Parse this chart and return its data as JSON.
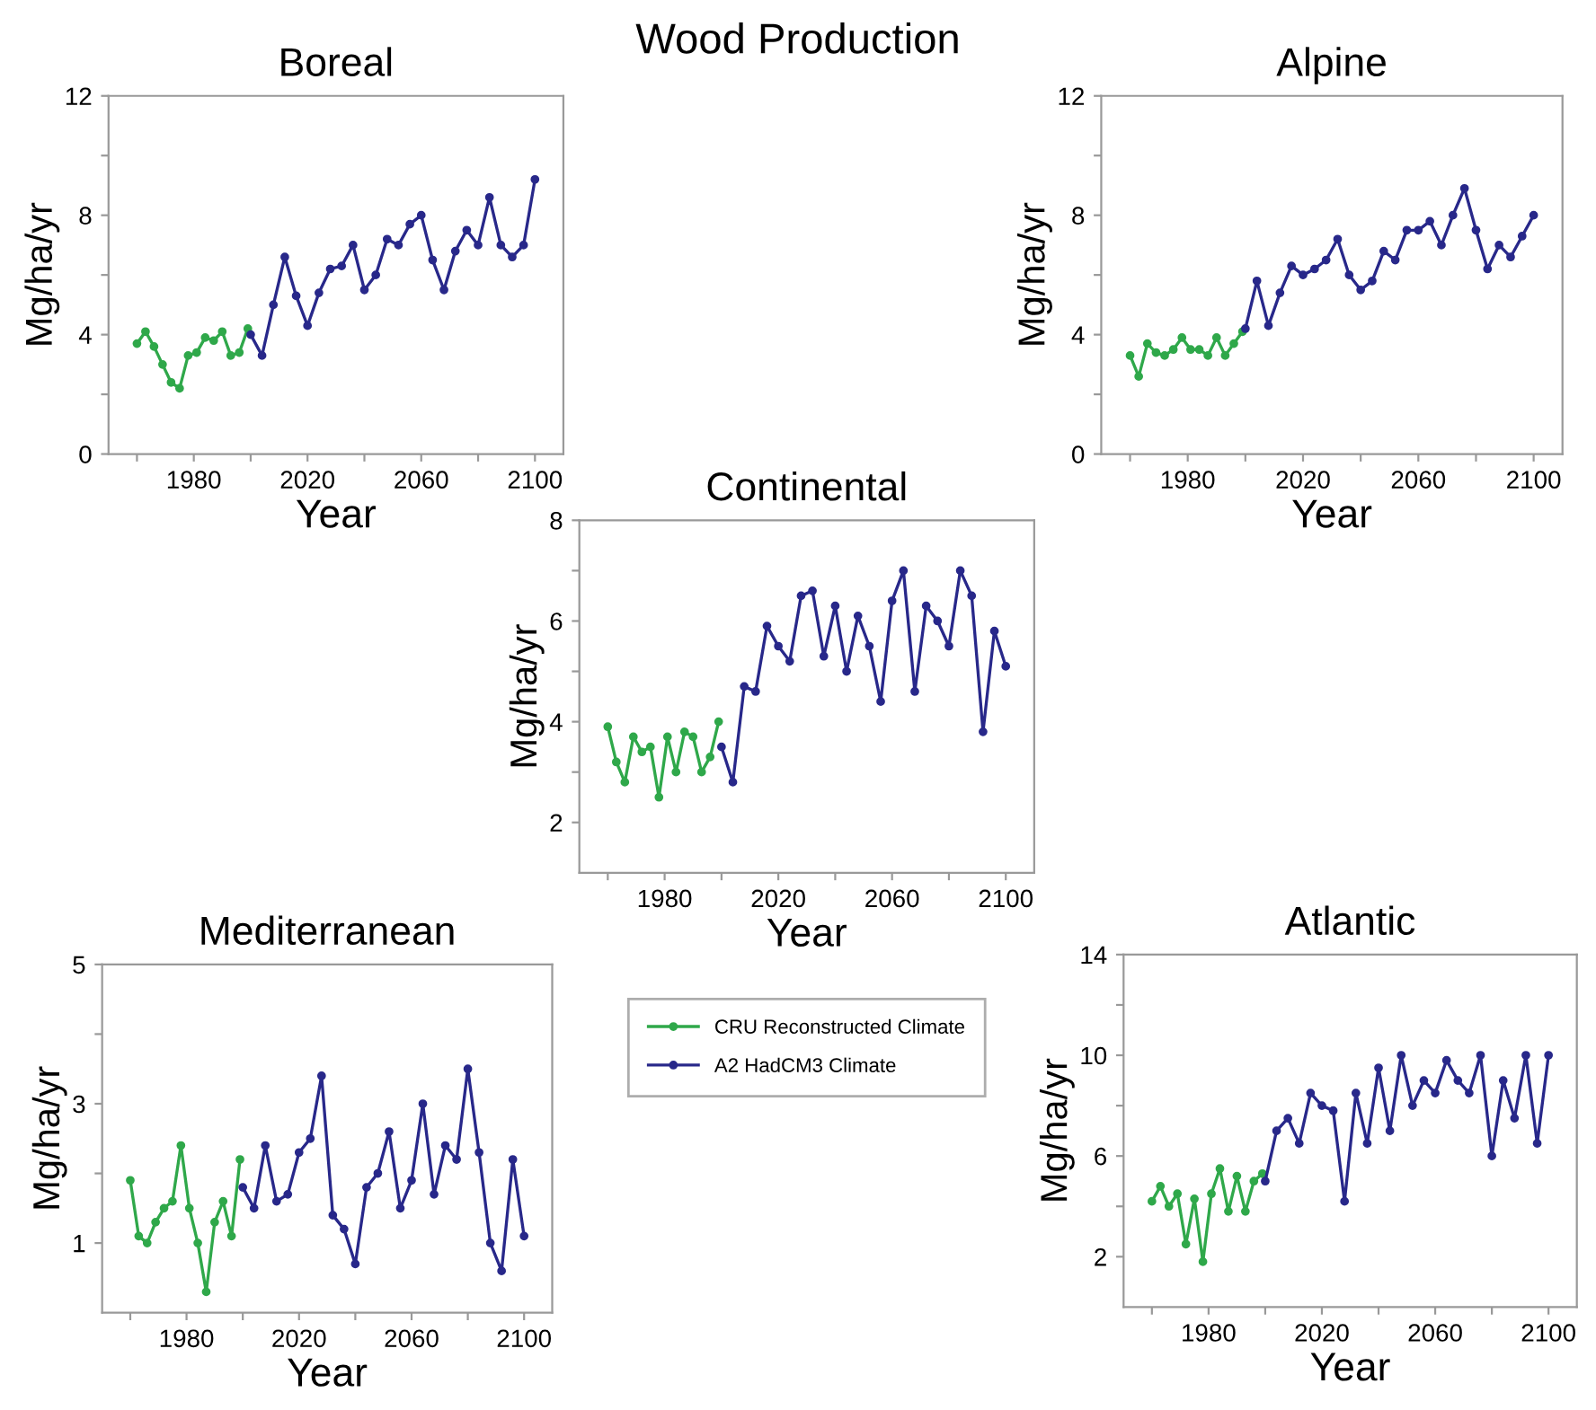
{
  "chart_data": [
    {
      "type": "line",
      "title": "Boreal",
      "xlabel": "Year",
      "ylabel": "Mg/ha/yr",
      "annotations": [
        "Wood Production"
      ],
      "marker": "circle",
      "line_style": "solid",
      "grid": false,
      "xlim": [
        1950,
        2110
      ],
      "xticks": [
        {
          "value": 1960,
          "label": null
        },
        1980,
        {
          "value": 2000,
          "label": null
        },
        2020,
        {
          "value": 2040,
          "label": null
        },
        2060,
        {
          "value": 2080,
          "label": null
        },
        2100
      ],
      "ylim": [
        0,
        12
      ],
      "yticks": [
        0,
        {
          "value": 2,
          "label": null
        },
        4,
        {
          "value": 6,
          "label": null
        },
        8,
        {
          "value": 10,
          "label": null
        },
        12
      ],
      "series": [
        {
          "color": "#2fa84a",
          "x": [
            1960,
            1963,
            1966,
            1969,
            1972,
            1975,
            1978,
            1981,
            1984,
            1987,
            1990,
            1993,
            1996,
            1999
          ],
          "values": [
            3.7,
            4.1,
            3.6,
            3.0,
            2.4,
            2.2,
            3.3,
            3.4,
            3.9,
            3.8,
            4.1,
            3.3,
            3.4,
            4.2
          ]
        },
        {
          "color": "#28288a",
          "x": [
            2000,
            2004,
            2008,
            2012,
            2016,
            2020,
            2024,
            2028,
            2032,
            2036,
            2040,
            2044,
            2048,
            2052,
            2056,
            2060,
            2064,
            2068,
            2072,
            2076,
            2080,
            2084,
            2088,
            2092,
            2096,
            2100
          ],
          "values": [
            4.0,
            3.3,
            5.0,
            6.6,
            5.3,
            4.3,
            5.4,
            6.2,
            6.3,
            7.0,
            5.5,
            6.0,
            7.2,
            7.0,
            7.7,
            8.0,
            6.5,
            5.5,
            6.8,
            7.5,
            7.0,
            8.6,
            7.0,
            6.6,
            7.0,
            9.2
          ]
        }
      ]
    },
    {
      "type": "line",
      "title": "Alpine",
      "xlabel": "Year",
      "ylabel": "Mg/ha/yr",
      "marker": "circle",
      "line_style": "solid",
      "grid": false,
      "xlim": [
        1950,
        2110
      ],
      "xticks": [
        {
          "value": 1960,
          "label": null
        },
        1980,
        {
          "value": 2000,
          "label": null
        },
        2020,
        {
          "value": 2040,
          "label": null
        },
        2060,
        {
          "value": 2080,
          "label": null
        },
        2100
      ],
      "ylim": [
        0,
        12
      ],
      "yticks": [
        0,
        {
          "value": 2,
          "label": null
        },
        4,
        {
          "value": 6,
          "label": null
        },
        8,
        {
          "value": 10,
          "label": null
        },
        12
      ],
      "series": [
        {
          "color": "#2fa84a",
          "x": [
            1960,
            1963,
            1966,
            1969,
            1972,
            1975,
            1978,
            1981,
            1984,
            1987,
            1990,
            1993,
            1996,
            1999
          ],
          "values": [
            3.3,
            2.6,
            3.7,
            3.4,
            3.3,
            3.5,
            3.9,
            3.5,
            3.5,
            3.3,
            3.9,
            3.3,
            3.7,
            4.1
          ]
        },
        {
          "color": "#28288a",
          "x": [
            2000,
            2004,
            2008,
            2012,
            2016,
            2020,
            2024,
            2028,
            2032,
            2036,
            2040,
            2044,
            2048,
            2052,
            2056,
            2060,
            2064,
            2068,
            2072,
            2076,
            2080,
            2084,
            2088,
            2092,
            2096,
            2100
          ],
          "values": [
            4.2,
            5.8,
            4.3,
            5.4,
            6.3,
            6.0,
            6.2,
            6.5,
            7.2,
            6.0,
            5.5,
            5.8,
            6.8,
            6.5,
            7.5,
            7.5,
            7.8,
            7.0,
            8.0,
            8.9,
            7.5,
            6.2,
            7.0,
            6.6,
            7.3,
            8.0
          ]
        }
      ]
    },
    {
      "type": "line",
      "title": "Continental",
      "xlabel": "Year",
      "ylabel": "Mg/ha/yr",
      "marker": "circle",
      "line_style": "solid",
      "grid": false,
      "legend": "bottom",
      "xlim": [
        1950,
        2110
      ],
      "xticks": [
        {
          "value": 1960,
          "label": null
        },
        1980,
        {
          "value": 2000,
          "label": null
        },
        2020,
        {
          "value": 2040,
          "label": null
        },
        2060,
        {
          "value": 2080,
          "label": null
        },
        2100
      ],
      "ylim": [
        1,
        8
      ],
      "yticks": [
        2,
        {
          "value": 3,
          "label": null
        },
        4,
        {
          "value": 5,
          "label": null
        },
        6,
        {
          "value": 7,
          "label": null
        },
        8
      ],
      "series": [
        {
          "name": "CRU Reconstructed Climate",
          "color": "#2fa84a",
          "x": [
            1960,
            1963,
            1966,
            1969,
            1972,
            1975,
            1978,
            1981,
            1984,
            1987,
            1990,
            1993,
            1996,
            1999
          ],
          "values": [
            3.9,
            3.2,
            2.8,
            3.7,
            3.4,
            3.5,
            2.5,
            3.7,
            3.0,
            3.8,
            3.7,
            3.0,
            3.3,
            4.0
          ]
        },
        {
          "name": "A2 HadCM3 Climate",
          "color": "#28288a",
          "x": [
            2000,
            2004,
            2008,
            2012,
            2016,
            2020,
            2024,
            2028,
            2032,
            2036,
            2040,
            2044,
            2048,
            2052,
            2056,
            2060,
            2064,
            2068,
            2072,
            2076,
            2080,
            2084,
            2088,
            2092,
            2096,
            2100
          ],
          "values": [
            3.5,
            2.8,
            4.7,
            4.6,
            5.9,
            5.5,
            5.2,
            6.5,
            6.6,
            5.3,
            6.3,
            5.0,
            6.1,
            5.5,
            4.4,
            6.4,
            7.0,
            4.6,
            6.3,
            6.0,
            5.5,
            7.0,
            6.5,
            3.8,
            5.8,
            5.1
          ]
        }
      ]
    },
    {
      "type": "line",
      "title": "Mediterranean",
      "xlabel": "Year",
      "ylabel": "Mg/ha/yr",
      "marker": "circle",
      "line_style": "solid",
      "grid": false,
      "xlim": [
        1950,
        2110
      ],
      "xticks": [
        {
          "value": 1960,
          "label": null
        },
        1980,
        {
          "value": 2000,
          "label": null
        },
        2020,
        {
          "value": 2040,
          "label": null
        },
        2060,
        {
          "value": 2080,
          "label": null
        },
        2100
      ],
      "ylim": [
        0,
        5
      ],
      "yticks": [
        1,
        {
          "value": 2,
          "label": null
        },
        3,
        {
          "value": 4,
          "label": null
        },
        5
      ],
      "series": [
        {
          "color": "#2fa84a",
          "x": [
            1960,
            1963,
            1966,
            1969,
            1972,
            1975,
            1978,
            1981,
            1984,
            1987,
            1990,
            1993,
            1996,
            1999
          ],
          "values": [
            1.9,
            1.1,
            1.0,
            1.3,
            1.5,
            1.6,
            2.4,
            1.5,
            1.0,
            0.3,
            1.3,
            1.6,
            1.1,
            2.2
          ]
        },
        {
          "color": "#28288a",
          "x": [
            2000,
            2004,
            2008,
            2012,
            2016,
            2020,
            2024,
            2028,
            2032,
            2036,
            2040,
            2044,
            2048,
            2052,
            2056,
            2060,
            2064,
            2068,
            2072,
            2076,
            2080,
            2084,
            2088,
            2092,
            2096,
            2100
          ],
          "values": [
            1.8,
            1.5,
            2.4,
            1.6,
            1.7,
            2.3,
            2.5,
            3.4,
            1.4,
            1.2,
            0.7,
            1.8,
            2.0,
            2.6,
            1.5,
            1.9,
            3.0,
            1.7,
            2.4,
            2.2,
            3.5,
            2.3,
            1.0,
            0.6,
            2.2,
            1.1
          ]
        }
      ]
    },
    {
      "type": "line",
      "title": "Atlantic",
      "xlabel": "Year",
      "ylabel": "Mg/ha/yr",
      "marker": "circle",
      "line_style": "solid",
      "grid": false,
      "xlim": [
        1950,
        2110
      ],
      "xticks": [
        {
          "value": 1960,
          "label": null
        },
        1980,
        {
          "value": 2000,
          "label": null
        },
        2020,
        {
          "value": 2040,
          "label": null
        },
        2060,
        {
          "value": 2080,
          "label": null
        },
        2100
      ],
      "ylim": [
        0,
        14
      ],
      "yticks": [
        2,
        {
          "value": 4,
          "label": null
        },
        6,
        {
          "value": 8,
          "label": null
        },
        10,
        {
          "value": 12,
          "label": null
        },
        14
      ],
      "series": [
        {
          "color": "#2fa84a",
          "x": [
            1960,
            1963,
            1966,
            1969,
            1972,
            1975,
            1978,
            1981,
            1984,
            1987,
            1990,
            1993,
            1996,
            1999
          ],
          "values": [
            4.2,
            4.8,
            4.0,
            4.5,
            2.5,
            4.3,
            1.8,
            4.5,
            5.5,
            3.8,
            5.2,
            3.8,
            5.0,
            5.3
          ]
        },
        {
          "color": "#28288a",
          "x": [
            2000,
            2004,
            2008,
            2012,
            2016,
            2020,
            2024,
            2028,
            2032,
            2036,
            2040,
            2044,
            2048,
            2052,
            2056,
            2060,
            2064,
            2068,
            2072,
            2076,
            2080,
            2084,
            2088,
            2092,
            2096,
            2100
          ],
          "values": [
            5.0,
            7.0,
            7.5,
            6.5,
            8.5,
            8.0,
            7.8,
            4.2,
            8.5,
            6.5,
            9.5,
            7.0,
            10.0,
            8.0,
            9.0,
            8.5,
            9.8,
            9.0,
            8.5,
            10.0,
            6.0,
            9.0,
            7.5,
            10.0,
            6.5,
            10.0
          ]
        }
      ]
    }
  ]
}
